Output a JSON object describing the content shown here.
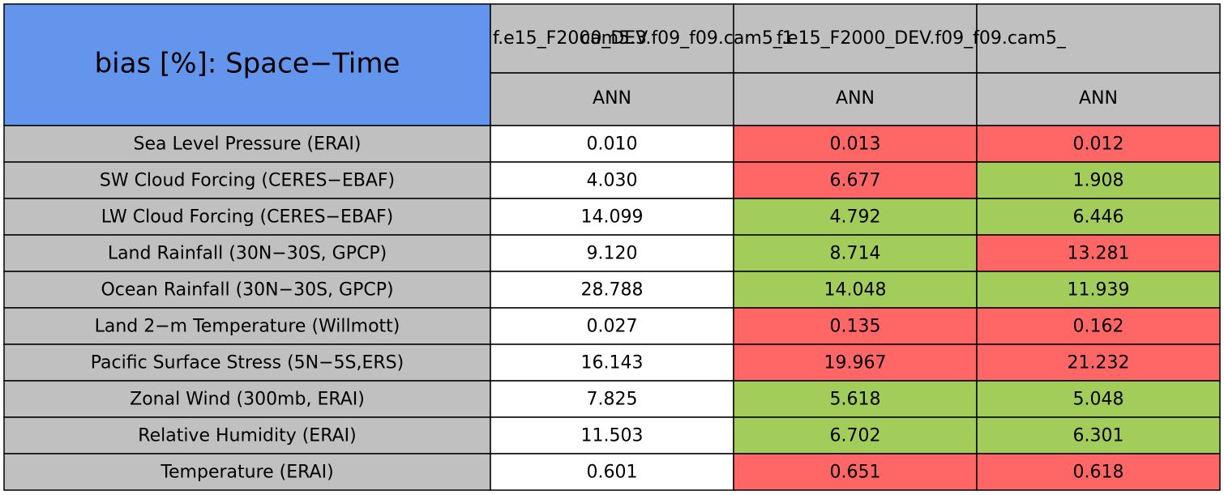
{
  "table": {
    "title": "bias [%]: Space−Time",
    "columns": [
      {
        "run": "cam5.3",
        "season": "ANN"
      },
      {
        "run": "f.e15_F2000_DEV.f09_f09.cam5_1",
        "season": "ANN"
      },
      {
        "run": "f.e15_F2000_DEV.f09_f09.cam5_",
        "season": "ANN"
      }
    ],
    "rows": [
      {
        "label": "Sea Level Pressure (ERAI)",
        "cells": [
          {
            "text": "0.010",
            "color": "#ffffff"
          },
          {
            "text": "0.013",
            "color": "#ff6666"
          },
          {
            "text": "0.012",
            "color": "#ff6666"
          }
        ]
      },
      {
        "label": "SW Cloud Forcing (CERES−EBAF)",
        "cells": [
          {
            "text": "4.030",
            "color": "#ffffff"
          },
          {
            "text": "6.677",
            "color": "#ff6666"
          },
          {
            "text": "1.908",
            "color": "#a2cd5a"
          }
        ]
      },
      {
        "label": "LW Cloud Forcing (CERES−EBAF)",
        "cells": [
          {
            "text": "14.099",
            "color": "#ffffff"
          },
          {
            "text": "4.792",
            "color": "#a2cd5a"
          },
          {
            "text": "6.446",
            "color": "#a2cd5a"
          }
        ]
      },
      {
        "label": "Land Rainfall (30N−30S, GPCP)",
        "cells": [
          {
            "text": "9.120",
            "color": "#ffffff"
          },
          {
            "text": "8.714",
            "color": "#a2cd5a"
          },
          {
            "text": "13.281",
            "color": "#ff6666"
          }
        ]
      },
      {
        "label": "Ocean Rainfall (30N−30S, GPCP)",
        "cells": [
          {
            "text": "28.788",
            "color": "#ffffff"
          },
          {
            "text": "14.048",
            "color": "#a2cd5a"
          },
          {
            "text": "11.939",
            "color": "#a2cd5a"
          }
        ]
      },
      {
        "label": "Land 2−m Temperature (Willmott)",
        "cells": [
          {
            "text": "0.027",
            "color": "#ffffff"
          },
          {
            "text": "0.135",
            "color": "#ff6666"
          },
          {
            "text": "0.162",
            "color": "#ff6666"
          }
        ]
      },
      {
        "label": "Pacific Surface Stress (5N−5S,ERS)",
        "cells": [
          {
            "text": "16.143",
            "color": "#ffffff"
          },
          {
            "text": "19.967",
            "color": "#ff6666"
          },
          {
            "text": "21.232",
            "color": "#ff6666"
          }
        ]
      },
      {
        "label": "Zonal Wind (300mb, ERAI)",
        "cells": [
          {
            "text": "7.825",
            "color": "#ffffff"
          },
          {
            "text": "5.618",
            "color": "#a2cd5a"
          },
          {
            "text": "5.048",
            "color": "#a2cd5a"
          }
        ]
      },
      {
        "label": "Relative Humidity (ERAI)",
        "cells": [
          {
            "text": "11.503",
            "color": "#ffffff"
          },
          {
            "text": "6.702",
            "color": "#a2cd5a"
          },
          {
            "text": "6.301",
            "color": "#a2cd5a"
          }
        ]
      },
      {
        "label": "Temperature (ERAI)",
        "cells": [
          {
            "text": "0.601",
            "color": "#ffffff"
          },
          {
            "text": "0.651",
            "color": "#ff6666"
          },
          {
            "text": "0.618",
            "color": "#ff6666"
          }
        ]
      }
    ]
  }
}
